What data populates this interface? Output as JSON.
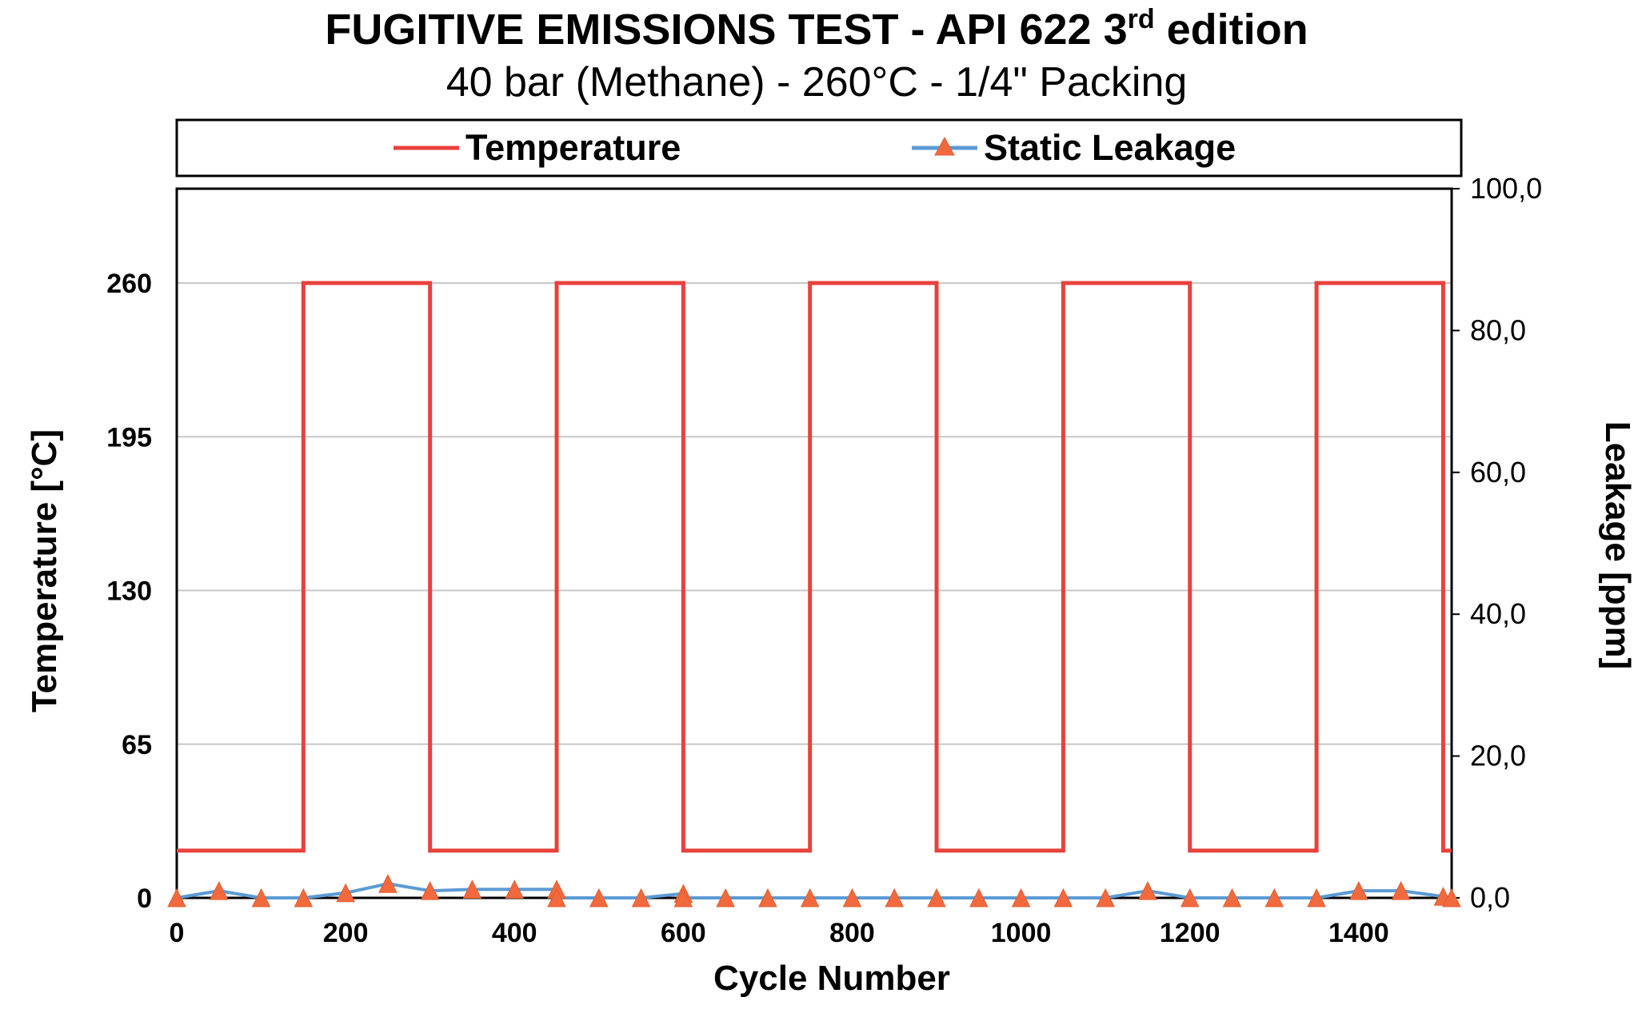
{
  "chart_data": {
    "type": "line",
    "title": "FUGITIVE EMISSIONS TEST - API 622 3",
    "title_superscript": "rd",
    "title_suffix": " edition",
    "subtitle": "40 bar (Methane) - 260°C - 1/4\" Packing",
    "xlabel": "Cycle Number",
    "ylabel_left": "Temperature [°C]",
    "ylabel_right": "Leakage [ppm]",
    "xlim": [
      0,
      1510
    ],
    "ylim_left": [
      0,
      305
    ],
    "ylim_right": [
      0,
      100
    ],
    "x_ticks": [
      "0",
      "200",
      "400",
      "600",
      "800",
      "1000",
      "1200",
      "1400"
    ],
    "x_tick_values": [
      0,
      200,
      400,
      600,
      800,
      1000,
      1200,
      1400
    ],
    "y_left_ticks": [
      "0",
      "65",
      "130",
      "195",
      "260"
    ],
    "y_left_tick_values": [
      0,
      65,
      130,
      195,
      260
    ],
    "y_right_ticks": [
      "0,0",
      "20,0",
      "40,0",
      "60,0",
      "80,0",
      "100,0"
    ],
    "y_right_tick_values": [
      0,
      20,
      40,
      60,
      80,
      100
    ],
    "grid": true,
    "legend_position": "top",
    "series": [
      {
        "name": "Temperature",
        "axis": "left",
        "color": "#e8413c",
        "step": true,
        "x": [
          0,
          150,
          150,
          300,
          300,
          450,
          450,
          600,
          600,
          750,
          750,
          900,
          900,
          1050,
          1050,
          1200,
          1200,
          1350,
          1350,
          1500,
          1500,
          1510
        ],
        "y": [
          20,
          20,
          260,
          260,
          20,
          20,
          260,
          260,
          20,
          20,
          260,
          260,
          20,
          20,
          260,
          260,
          20,
          20,
          260,
          260,
          20,
          20
        ]
      },
      {
        "name": "Static Leakage",
        "axis": "right",
        "color": "#5b9bd5",
        "marker_color": "#f2693e",
        "marker": "triangle",
        "x": [
          0,
          50,
          100,
          150,
          200,
          250,
          300,
          350,
          400,
          450,
          450,
          500,
          550,
          600,
          600,
          650,
          700,
          750,
          800,
          850,
          900,
          950,
          1000,
          1050,
          1100,
          1150,
          1200,
          1250,
          1300,
          1350,
          1400,
          1450,
          1500,
          1510
        ],
        "y": [
          0,
          1.0,
          0,
          0,
          0.7,
          2.0,
          1.0,
          1.2,
          1.2,
          1.2,
          0,
          0,
          0,
          0.6,
          0,
          0,
          0,
          0,
          0,
          0,
          0,
          0,
          0,
          0,
          0,
          1.0,
          0,
          0,
          0,
          0,
          1.0,
          1.0,
          0.2,
          0
        ]
      }
    ]
  }
}
